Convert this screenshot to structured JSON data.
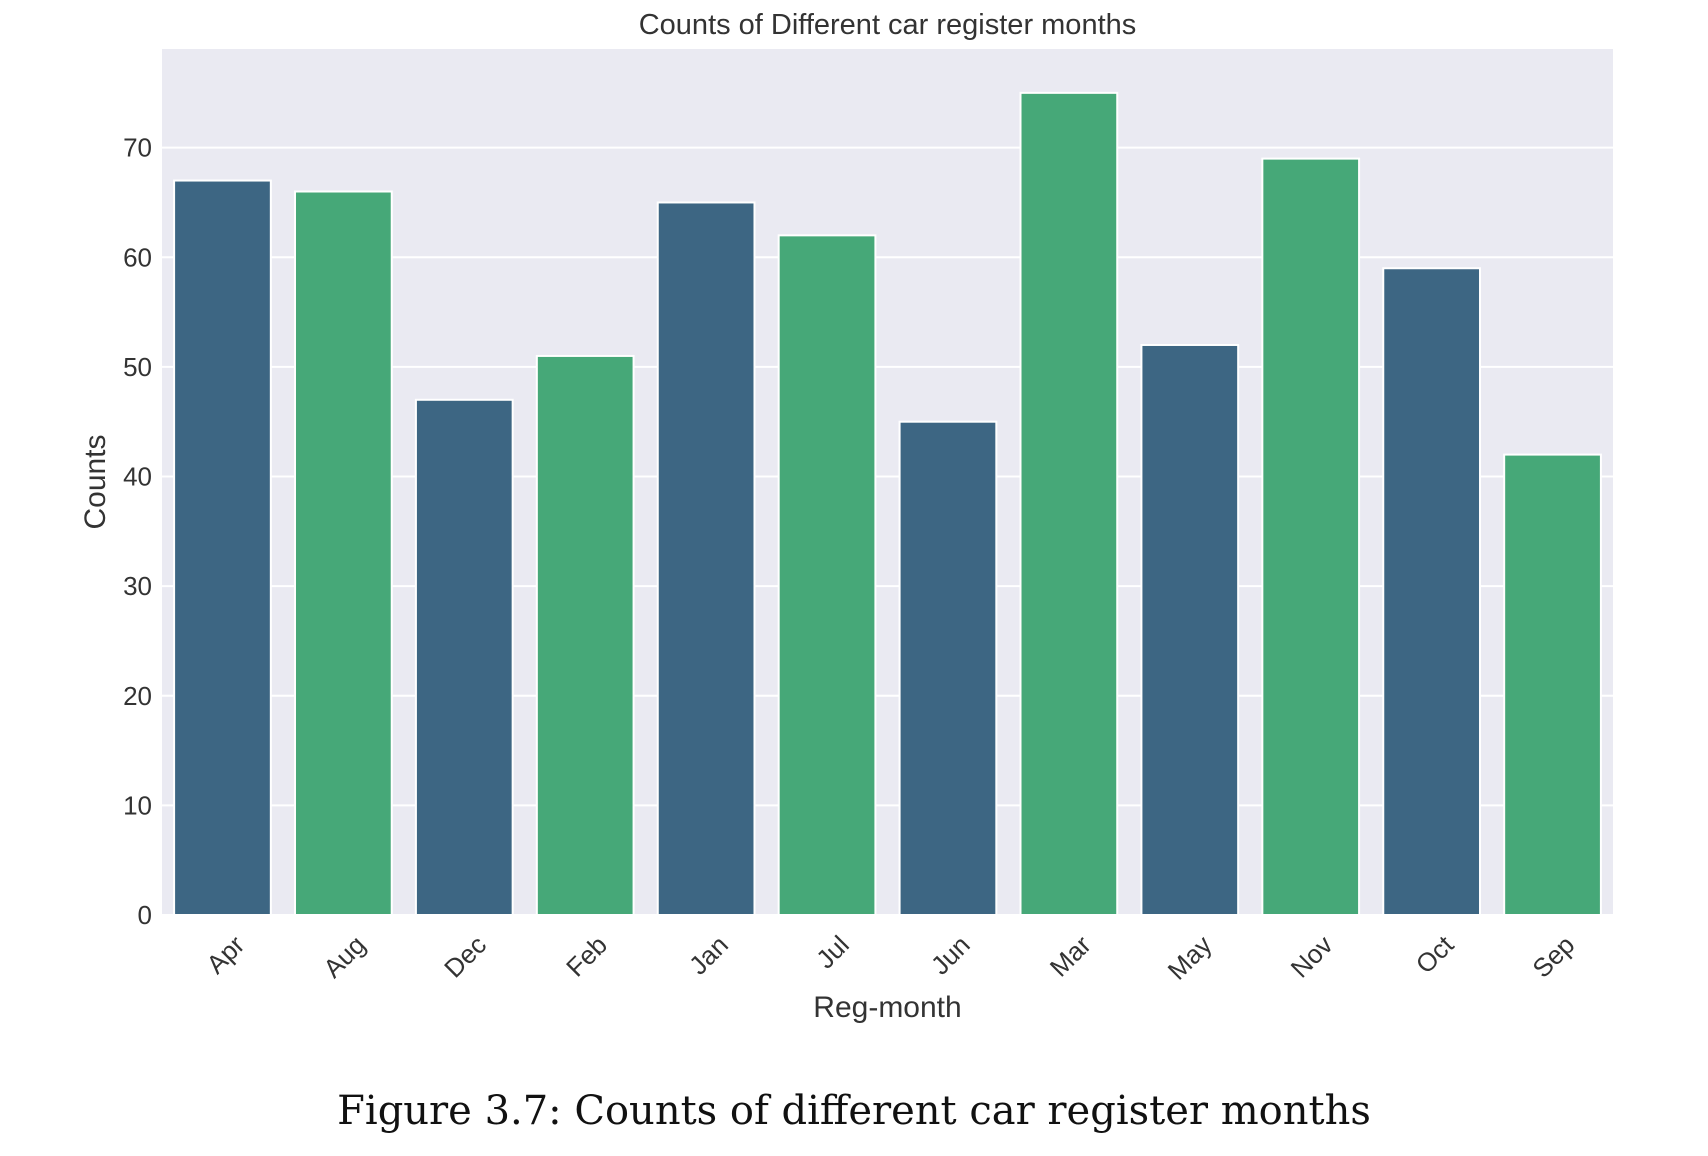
{
  "chart_data": {
    "type": "bar",
    "title": "Counts of Different car register months",
    "xlabel": "Reg-month",
    "ylabel": "Counts",
    "categories": [
      "Apr",
      "Aug",
      "Dec",
      "Feb",
      "Jan",
      "Jul",
      "Jun",
      "Mar",
      "May",
      "Nov",
      "Oct",
      "Sep"
    ],
    "values": [
      67,
      66,
      47,
      51,
      65,
      62,
      45,
      75,
      52,
      69,
      59,
      42
    ],
    "bar_colors": [
      "#3d6683",
      "#46a878",
      "#3d6683",
      "#46a878",
      "#3d6683",
      "#46a878",
      "#3d6683",
      "#46a878",
      "#3d6683",
      "#46a878",
      "#3d6683",
      "#46a878"
    ],
    "yticks": [
      0,
      10,
      20,
      30,
      40,
      50,
      60,
      70
    ],
    "ylim": [
      0,
      79
    ],
    "grid": true,
    "background_color": "#eaeaf2",
    "grid_color": "#ffffff"
  },
  "caption": "Figure 3.7: Counts of different car register months"
}
